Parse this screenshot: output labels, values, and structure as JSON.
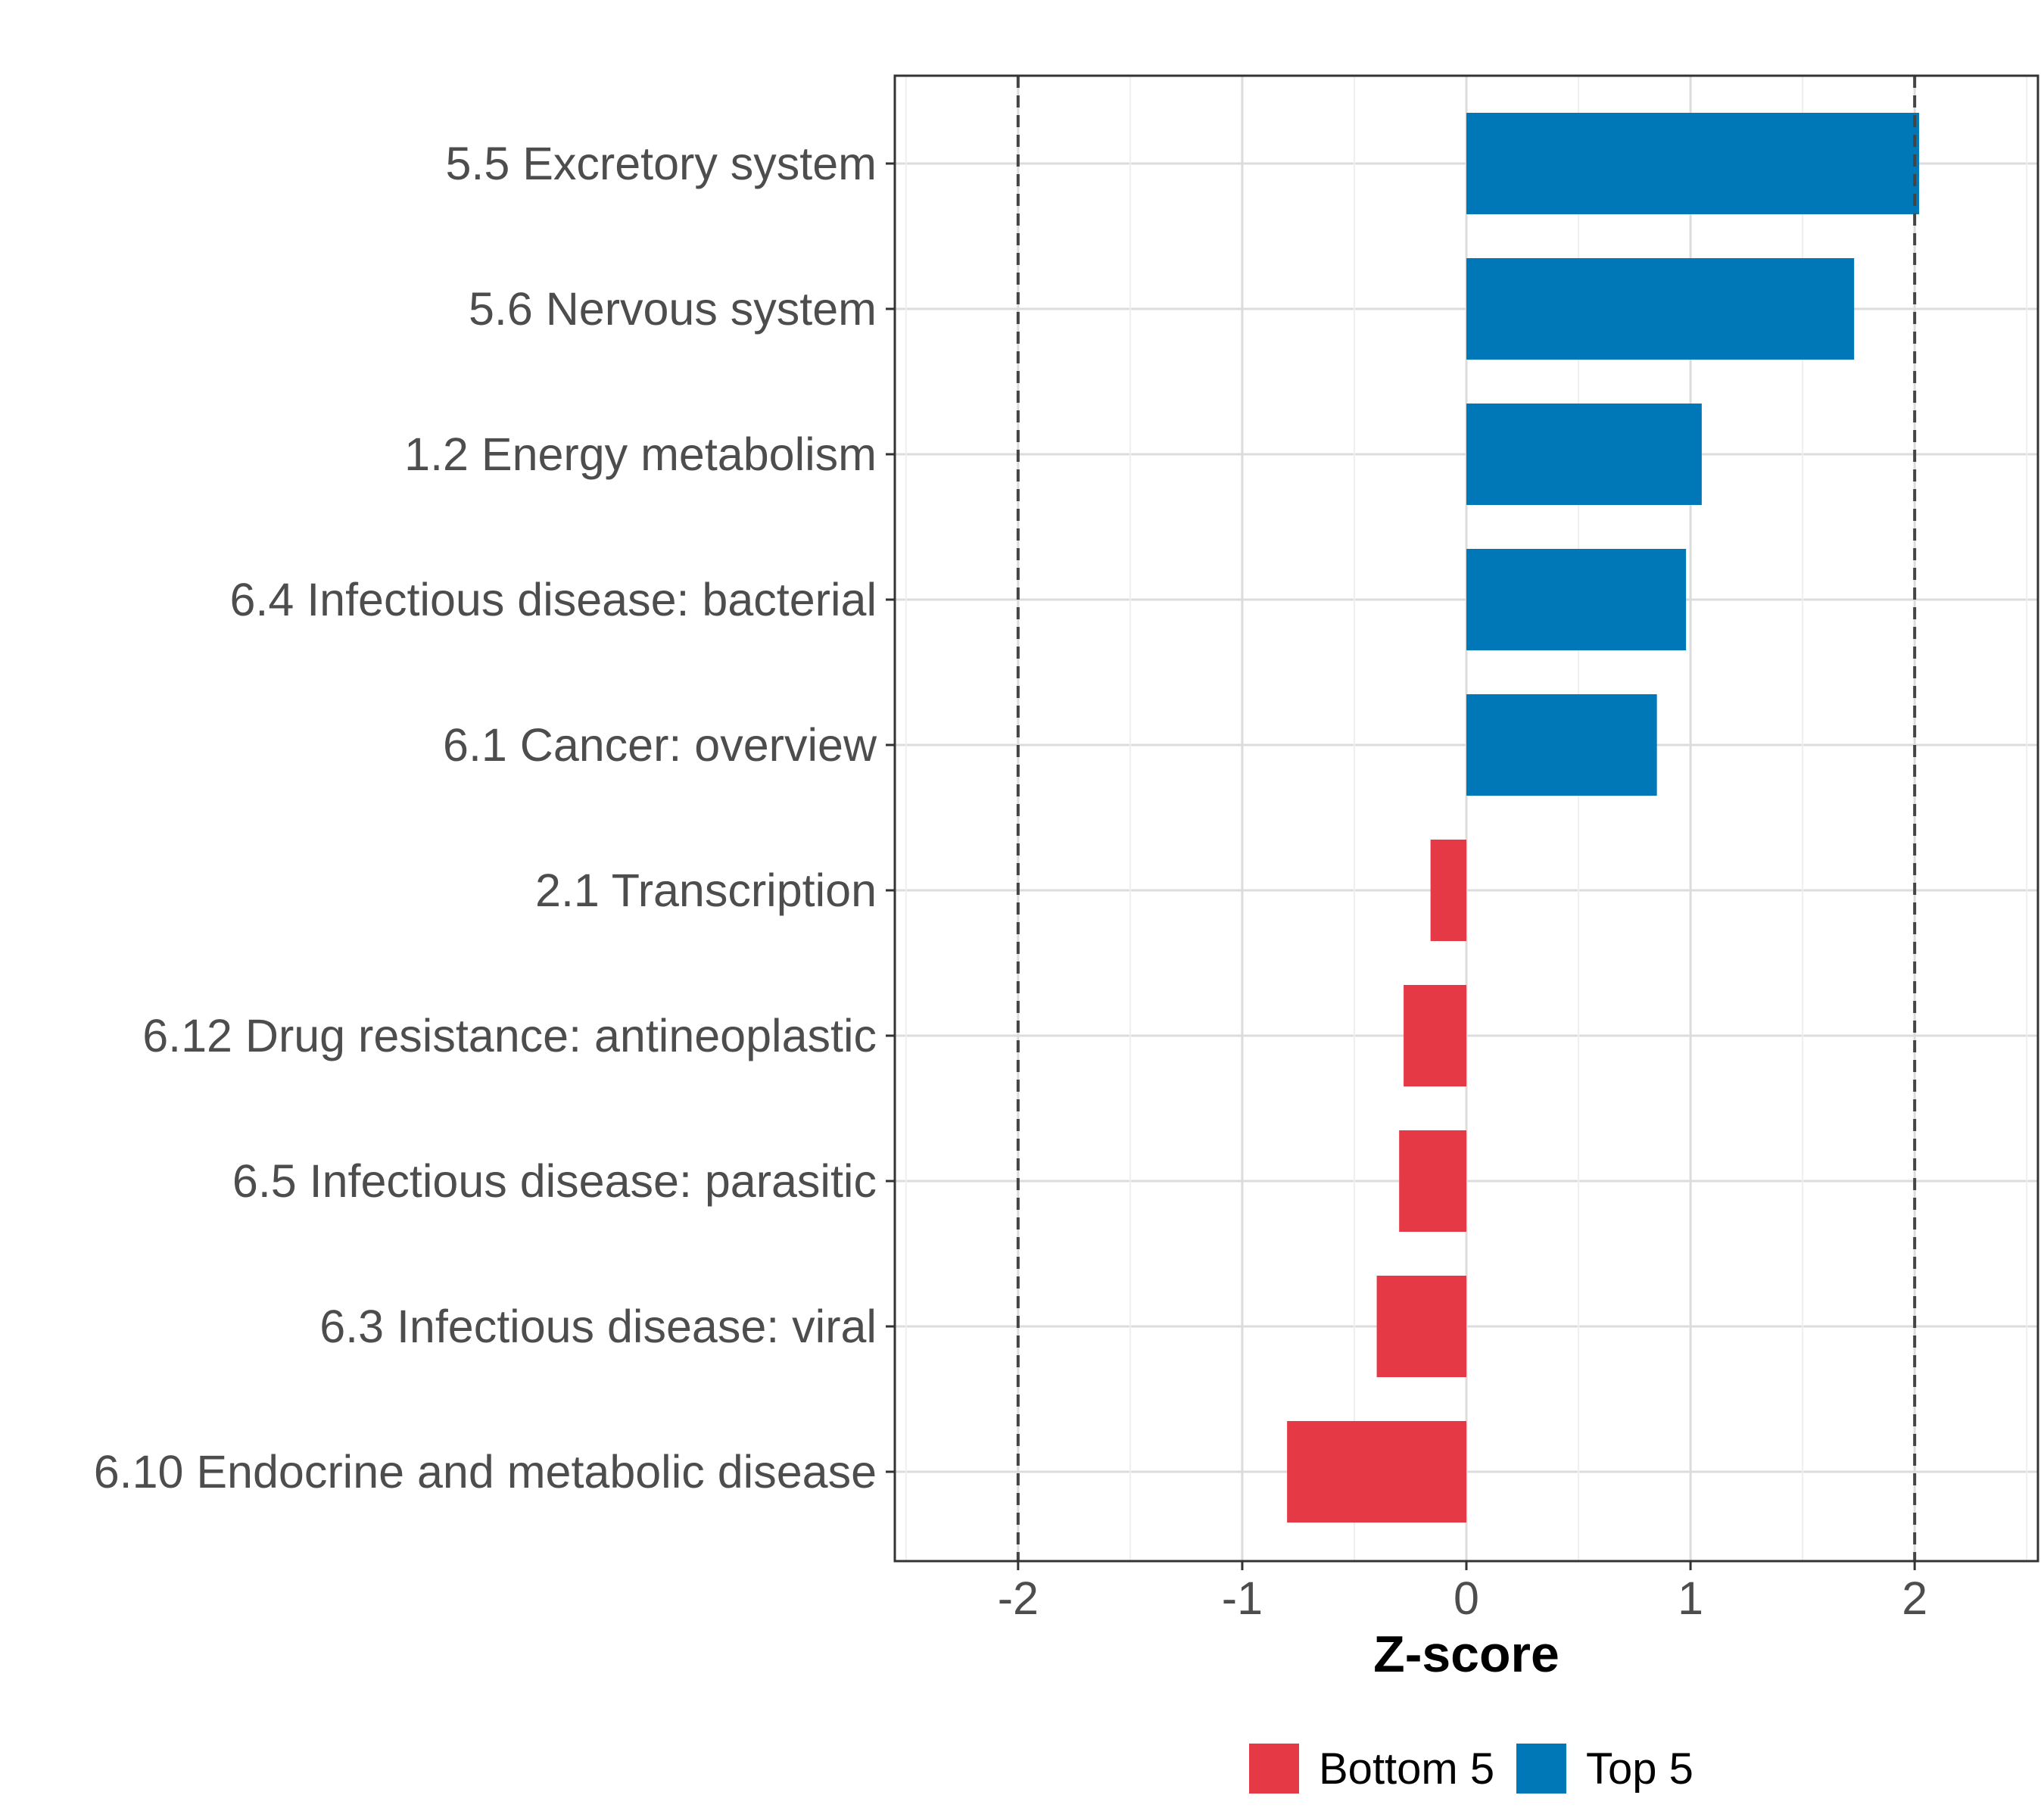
{
  "chart_data": {
    "type": "bar",
    "orientation": "horizontal",
    "title": "",
    "xlabel": "Z-score",
    "ylabel": "",
    "xlim": [
      -2.55,
      2.55
    ],
    "x_ticks": [
      -2,
      -1,
      0,
      1,
      2
    ],
    "x_tick_labels": [
      "-2",
      "-1",
      "0",
      "1",
      "2"
    ],
    "reference_lines": [
      -2,
      2
    ],
    "grid": true,
    "legend_position": "bottom",
    "categories": [
      "5.5 Excretory system",
      "5.6 Nervous system",
      "1.2 Energy metabolism",
      "6.4 Infectious disease: bacterial",
      "6.1 Cancer: overview",
      "2.1 Transcription",
      "6.12 Drug resistance: antineoplastic",
      "6.5 Infectious disease: parasitic",
      "6.3 Infectious disease: viral",
      "6.10 Endocrine and metabolic disease"
    ],
    "values": [
      2.02,
      1.73,
      1.05,
      0.98,
      0.85,
      -0.16,
      -0.28,
      -0.3,
      -0.4,
      -0.8
    ],
    "groups": [
      "Top 5",
      "Top 5",
      "Top 5",
      "Top 5",
      "Top 5",
      "Bottom 5",
      "Bottom 5",
      "Bottom 5",
      "Bottom 5",
      "Bottom 5"
    ],
    "legend": [
      {
        "name": "Bottom 5",
        "color": "#e63946"
      },
      {
        "name": "Top 5",
        "color": "#0077b6"
      }
    ]
  }
}
